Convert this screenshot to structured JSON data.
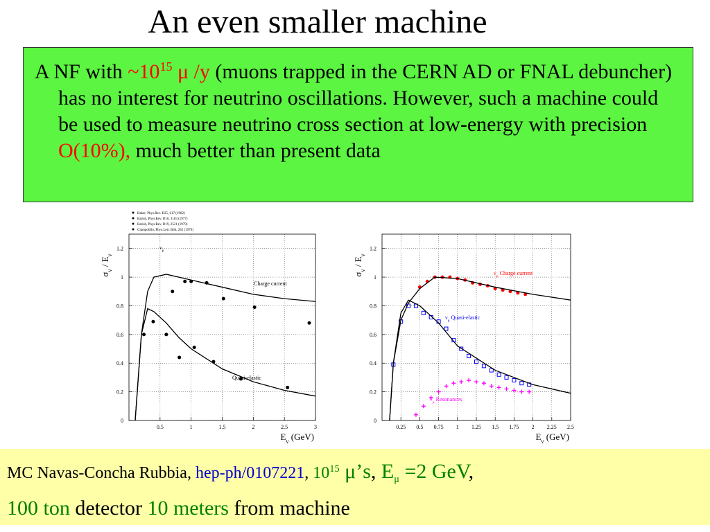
{
  "slide": {
    "title": "An even smaller machine",
    "top_box": {
      "runs": [
        {
          "text": "A NF with "
        },
        {
          "text": "~10",
          "color": "#ff0000"
        },
        {
          "text": "15",
          "color": "#ff0000",
          "style": "sup"
        },
        {
          "text": " μ /y",
          "color": "#ff0000"
        },
        {
          "text": " (muons trapped in the CERN AD or FNAL debuncher) has no interest for neutrino oscillations. However, such a machine could be used to measure neutrino cross section at low-energy with precision "
        },
        {
          "text": "O(10%),",
          "color": "#ff0000"
        },
        {
          "text": " much better than present data"
        }
      ]
    },
    "bottom_box": {
      "lines": [
        [
          {
            "text": "MC Navas-Concha Rubbia, "
          },
          {
            "text": "hep-ph/0107221",
            "color": "#0000cc"
          },
          {
            "text": ", "
          },
          {
            "text": "10",
            "color": "#008000"
          },
          {
            "text": "15",
            "color": "#008000",
            "style": "sup"
          },
          {
            "text": " μ’s",
            "color": "#008000",
            "style": "big"
          },
          {
            "text": ", ",
            "style": "big"
          },
          {
            "text": "E",
            "color": "#008000",
            "style": "big"
          },
          {
            "text": "μ",
            "color": "#008000",
            "style": "sub"
          },
          {
            "text": " =2 GeV",
            "color": "#008000",
            "style": "big"
          },
          {
            "text": ",",
            "style": "big"
          }
        ],
        [
          {
            "text": "100 ton",
            "color": "#008000",
            "style": "big"
          },
          {
            "text": " detector ",
            "style": "big"
          },
          {
            "text": "10 meters",
            "color": "#008000",
            "style": "big"
          },
          {
            "text": " from machine",
            "style": "big"
          }
        ]
      ]
    }
  },
  "chart_data": [
    {
      "type": "scatter",
      "xlim": [
        0,
        3
      ],
      "ylim": [
        0,
        1.3
      ],
      "xticks": [
        0.5,
        1,
        1.5,
        2,
        2.5,
        3
      ],
      "yticks": [
        0,
        0.2,
        0.4,
        0.6,
        0.8,
        1,
        1.2
      ],
      "x_label": {
        "runs": [
          {
            "text": "E"
          },
          {
            "text": "ν",
            "style": "sub"
          },
          {
            "text": " (GeV)"
          }
        ]
      },
      "y_label": {
        "runs": [
          {
            "text": "σ"
          },
          {
            "text": "ν",
            "style": "sub"
          },
          {
            "text": " / E"
          },
          {
            "text": "ν",
            "style": "sub"
          }
        ]
      },
      "legend": [
        "Baker, Phys.Rev. D25, 617 (1982)",
        "Barish, Phys.Rev. D16, 3103 (1977)",
        "Barish, Phys.Rev. D19, 2521 (1979)",
        "Ciampolillo, Phys.Lett. B84, 281 (1979)"
      ],
      "annotations": [
        {
          "runs": [
            {
              "text": "ν"
            },
            {
              "text": "μ",
              "style": "sub"
            }
          ]
        },
        {
          "runs": [
            {
              "text": "Charge current"
            }
          ]
        },
        {
          "runs": [
            {
              "text": "Quasi-elastic"
            }
          ]
        }
      ],
      "series": [
        {
          "mode": "points",
          "marker": "circle",
          "color": "#000000",
          "x": [
            0.24,
            0.39,
            0.6,
            0.7,
            0.81,
            0.9,
            1.0,
            1.05,
            1.25,
            1.36,
            1.52,
            1.8,
            2.02,
            2.55,
            2.9
          ],
          "values": [
            0.6,
            0.69,
            0.6,
            0.9,
            0.44,
            0.97,
            0.97,
            0.51,
            0.96,
            0.41,
            0.85,
            0.29,
            0.79,
            0.23,
            0.68
          ]
        },
        {
          "mode": "line",
          "color": "#000000",
          "x": [
            0.1,
            0.2,
            0.3,
            0.4,
            0.6,
            1.0,
            1.5,
            2.0,
            2.5,
            3.0
          ],
          "values": [
            0,
            0.6,
            0.9,
            1.0,
            1.02,
            0.98,
            0.93,
            0.88,
            0.85,
            0.83
          ]
        },
        {
          "mode": "line",
          "color": "#000000",
          "x": [
            0.1,
            0.2,
            0.3,
            0.4,
            0.6,
            0.8,
            1.0,
            1.5,
            2.0,
            2.5,
            3.0
          ],
          "values": [
            0,
            0.6,
            0.78,
            0.76,
            0.68,
            0.58,
            0.5,
            0.36,
            0.27,
            0.21,
            0.17
          ]
        }
      ]
    },
    {
      "type": "scatter",
      "xlim": [
        0,
        2.5
      ],
      "ylim": [
        0,
        1.3
      ],
      "xticks": [
        0.25,
        0.5,
        0.75,
        1,
        1.25,
        1.5,
        1.75,
        2,
        2.25,
        2.5
      ],
      "yticks": [
        0,
        0.2,
        0.4,
        0.6,
        0.8,
        1,
        1.2
      ],
      "x_label": {
        "runs": [
          {
            "text": "E"
          },
          {
            "text": "ν",
            "style": "sub"
          },
          {
            "text": " (GeV)"
          }
        ]
      },
      "y_label": {
        "runs": [
          {
            "text": "σ"
          },
          {
            "text": "ν",
            "style": "sub"
          },
          {
            "text": " / E"
          },
          {
            "text": "ν",
            "style": "sub"
          }
        ]
      },
      "annotations": [
        {
          "runs": [
            {
              "text": "ν",
              "color": "#ff0000"
            },
            {
              "text": "μ",
              "style": "sub",
              "color": "#ff0000"
            },
            {
              "text": " Charge current",
              "color": "#ff0000"
            }
          ]
        },
        {
          "runs": [
            {
              "text": "ν",
              "color": "#0000ff"
            },
            {
              "text": "μ",
              "style": "sub",
              "color": "#0000ff"
            },
            {
              "text": " Quasi-elastic",
              "color": "#0000ff"
            }
          ]
        },
        {
          "runs": [
            {
              "text": "ν",
              "color": "#ff00ff"
            },
            {
              "text": "μ",
              "style": "sub",
              "color": "#ff00ff"
            },
            {
              "text": " Resonances",
              "color": "#ff00ff"
            }
          ]
        }
      ],
      "series": [
        {
          "mode": "points",
          "marker": "circle",
          "color": "#ff0000",
          "x": [
            0.5,
            0.6,
            0.7,
            0.8,
            0.9,
            1.0,
            1.1,
            1.2,
            1.3,
            1.4,
            1.5,
            1.6,
            1.7,
            1.8,
            1.9
          ],
          "values": [
            0.93,
            0.97,
            1.0,
            1.0,
            1.0,
            0.99,
            0.98,
            0.96,
            0.95,
            0.94,
            0.92,
            0.91,
            0.9,
            0.89,
            0.88
          ]
        },
        {
          "mode": "points",
          "marker": "square",
          "color": "#0000ff",
          "x": [
            0.15,
            0.25,
            0.35,
            0.45,
            0.55,
            0.65,
            0.75,
            0.85,
            0.95,
            1.05,
            1.15,
            1.25,
            1.35,
            1.45,
            1.55,
            1.65,
            1.75,
            1.85,
            1.95
          ],
          "values": [
            0.39,
            0.69,
            0.8,
            0.8,
            0.75,
            0.72,
            0.69,
            0.64,
            0.56,
            0.5,
            0.45,
            0.41,
            0.38,
            0.35,
            0.32,
            0.3,
            0.28,
            0.26,
            0.25
          ]
        },
        {
          "mode": "points",
          "marker": "plus",
          "color": "#ff00ff",
          "x": [
            0.45,
            0.55,
            0.65,
            0.75,
            0.85,
            0.95,
            1.05,
            1.15,
            1.25,
            1.35,
            1.45,
            1.55,
            1.65,
            1.75,
            1.85,
            1.95
          ],
          "values": [
            0.04,
            0.1,
            0.16,
            0.2,
            0.24,
            0.26,
            0.27,
            0.28,
            0.27,
            0.26,
            0.24,
            0.23,
            0.22,
            0.21,
            0.2,
            0.2
          ]
        },
        {
          "mode": "line",
          "color": "#000000",
          "x": [
            0.1,
            0.15,
            0.25,
            0.35,
            0.5,
            0.7,
            1.0,
            1.5,
            2.0,
            2.5
          ],
          "values": [
            0,
            0.4,
            0.7,
            0.82,
            0.92,
            1.0,
            0.99,
            0.93,
            0.88,
            0.84
          ]
        },
        {
          "mode": "line",
          "color": "#000000",
          "x": [
            0.1,
            0.15,
            0.25,
            0.35,
            0.5,
            0.75,
            1.0,
            1.5,
            2.0,
            2.5
          ],
          "values": [
            0,
            0.4,
            0.75,
            0.84,
            0.8,
            0.68,
            0.52,
            0.35,
            0.25,
            0.19
          ]
        }
      ]
    }
  ]
}
